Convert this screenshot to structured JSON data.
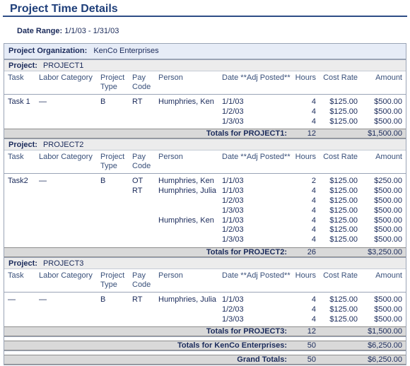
{
  "page": {
    "title": "Project Time Details",
    "date_range_label": "Date Range:",
    "date_range_value": "1/1/03 - 1/31/03"
  },
  "org": {
    "label": "Project Organization:",
    "value": "KenCo Enterprises"
  },
  "columns": {
    "task": "Task",
    "labor": "Labor Category",
    "ptype_1": "Project",
    "ptype_2": "Type",
    "pay_1": "Pay",
    "pay_2": "Code",
    "person": "Person",
    "date": "Date **Adj Posted**",
    "hours": "Hours",
    "rate": "Cost Rate",
    "amount": "Amount"
  },
  "project_label": "Project:",
  "projects": [
    {
      "name": "PROJECT1",
      "rows": [
        {
          "task": "Task 1",
          "labor": "—",
          "ptype": "B",
          "pay": "RT",
          "person": "Humphries, Ken",
          "date": "1/1/03",
          "hours": "4",
          "rate": "$125.00",
          "amount": "$500.00"
        },
        {
          "task": "",
          "labor": "",
          "ptype": "",
          "pay": "",
          "person": "",
          "date": "1/2/03",
          "hours": "4",
          "rate": "$125.00",
          "amount": "$500.00"
        },
        {
          "task": "",
          "labor": "",
          "ptype": "",
          "pay": "",
          "person": "",
          "date": "1/3/03",
          "hours": "4",
          "rate": "$125.00",
          "amount": "$500.00"
        }
      ],
      "totals_label": "Totals for PROJECT1:",
      "totals_hours": "12",
      "totals_amount": "$1,500.00"
    },
    {
      "name": "PROJECT2",
      "rows": [
        {
          "task": "Task2",
          "labor": "—",
          "ptype": "B",
          "pay": "OT",
          "person": "Humphries, Ken",
          "date": "1/1/03",
          "hours": "2",
          "rate": "$125.00",
          "amount": "$250.00"
        },
        {
          "task": "",
          "labor": "",
          "ptype": "",
          "pay": "RT",
          "person": "Humphries, Julia",
          "date": "1/1/03",
          "hours": "4",
          "rate": "$125.00",
          "amount": "$500.00"
        },
        {
          "task": "",
          "labor": "",
          "ptype": "",
          "pay": "",
          "person": "",
          "date": "1/2/03",
          "hours": "4",
          "rate": "$125.00",
          "amount": "$500.00"
        },
        {
          "task": "",
          "labor": "",
          "ptype": "",
          "pay": "",
          "person": "",
          "date": "1/3/03",
          "hours": "4",
          "rate": "$125.00",
          "amount": "$500.00"
        },
        {
          "task": "",
          "labor": "",
          "ptype": "",
          "pay": "",
          "person": "Humphries, Ken",
          "date": "1/1/03",
          "hours": "4",
          "rate": "$125.00",
          "amount": "$500.00"
        },
        {
          "task": "",
          "labor": "",
          "ptype": "",
          "pay": "",
          "person": "",
          "date": "1/2/03",
          "hours": "4",
          "rate": "$125.00",
          "amount": "$500.00"
        },
        {
          "task": "",
          "labor": "",
          "ptype": "",
          "pay": "",
          "person": "",
          "date": "1/3/03",
          "hours": "4",
          "rate": "$125.00",
          "amount": "$500.00"
        }
      ],
      "totals_label": "Totals for PROJECT2:",
      "totals_hours": "26",
      "totals_amount": "$3,250.00"
    },
    {
      "name": "PROJECT3",
      "rows": [
        {
          "task": "—",
          "labor": "—",
          "ptype": "B",
          "pay": "RT",
          "person": "Humphries, Julia",
          "date": "1/1/03",
          "hours": "4",
          "rate": "$125.00",
          "amount": "$500.00"
        },
        {
          "task": "",
          "labor": "",
          "ptype": "",
          "pay": "",
          "person": "",
          "date": "1/2/03",
          "hours": "4",
          "rate": "$125.00",
          "amount": "$500.00"
        },
        {
          "task": "",
          "labor": "",
          "ptype": "",
          "pay": "",
          "person": "",
          "date": "1/3/03",
          "hours": "4",
          "rate": "$125.00",
          "amount": "$500.00"
        }
      ],
      "totals_label": "Totals for PROJECT3:",
      "totals_hours": "12",
      "totals_amount": "$1,500.00"
    }
  ],
  "org_totals": {
    "label": "Totals for KenCo Enterprises:",
    "hours": "50",
    "amount": "$6,250.00"
  },
  "grand_totals": {
    "label": "Grand Totals:",
    "hours": "50",
    "amount": "$6,250.00"
  }
}
